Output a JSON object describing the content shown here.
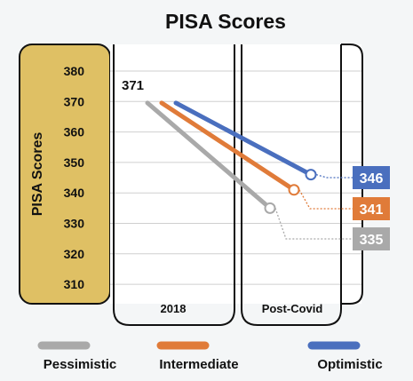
{
  "chart_data": {
    "type": "line",
    "title": "PISA Scores",
    "ylabel": "PISA Scores",
    "xlabel": "",
    "categories": [
      "2018",
      "Post-Covid"
    ],
    "ylim": [
      303,
      387
    ],
    "yticks": [
      310,
      320,
      330,
      340,
      350,
      360,
      370,
      380
    ],
    "start_label": "371",
    "series": [
      {
        "name": "Pessimistic",
        "values": [
          371,
          335
        ],
        "color": "#a9a9a9",
        "end_label": "335"
      },
      {
        "name": "Intermediate",
        "values": [
          371,
          341
        ],
        "color": "#e07b39",
        "end_label": "341"
      },
      {
        "name": "Optimistic",
        "values": [
          371,
          346
        ],
        "color": "#4a6fbe",
        "end_label": "346"
      }
    ],
    "grid": true,
    "legend_position": "bottom",
    "axis_panel_color": "#dfc064"
  }
}
